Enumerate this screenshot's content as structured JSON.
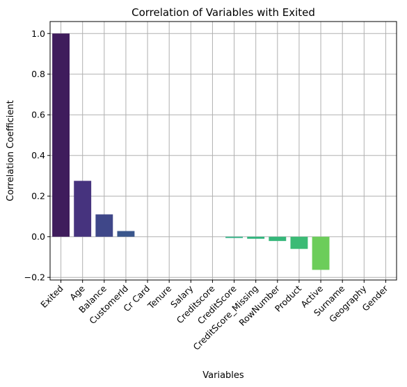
{
  "chart_data": {
    "type": "bar",
    "title": "Correlation of Variables with Exited",
    "xlabel": "Variables",
    "ylabel": "Correlation Coefficient",
    "categories": [
      "Exited",
      "Age",
      "Balance",
      "CustomerId",
      "Cr Card",
      "Tenure",
      "Salary",
      "Creditscore",
      "CreditScore",
      "CreditScore_Missing",
      "RowNumber",
      "Product",
      "Active",
      "Surname",
      "Geography",
      "Gender"
    ],
    "values": [
      1.0,
      0.275,
      0.11,
      0.028,
      0.0,
      0.0,
      0.0,
      0.0,
      -0.006,
      -0.01,
      -0.021,
      -0.06,
      -0.163,
      0.0,
      0.0,
      0.0
    ],
    "colors": [
      "#3f1c5c",
      "#46337e",
      "#3f4789",
      "#3a568c",
      "#33638d",
      "#2c718e",
      "#287d8e",
      "#22a884",
      "#27ae80",
      "#2fb47c",
      "#35b779",
      "#3bbb75",
      "#6ccd5a",
      "#93d741",
      "#b8de29",
      "#fde725"
    ],
    "yticks": [
      -0.2,
      0.0,
      0.2,
      0.4,
      0.6,
      0.8,
      1.0
    ],
    "ylim": [
      -0.213,
      1.059
    ],
    "grid": true,
    "legend": false
  }
}
